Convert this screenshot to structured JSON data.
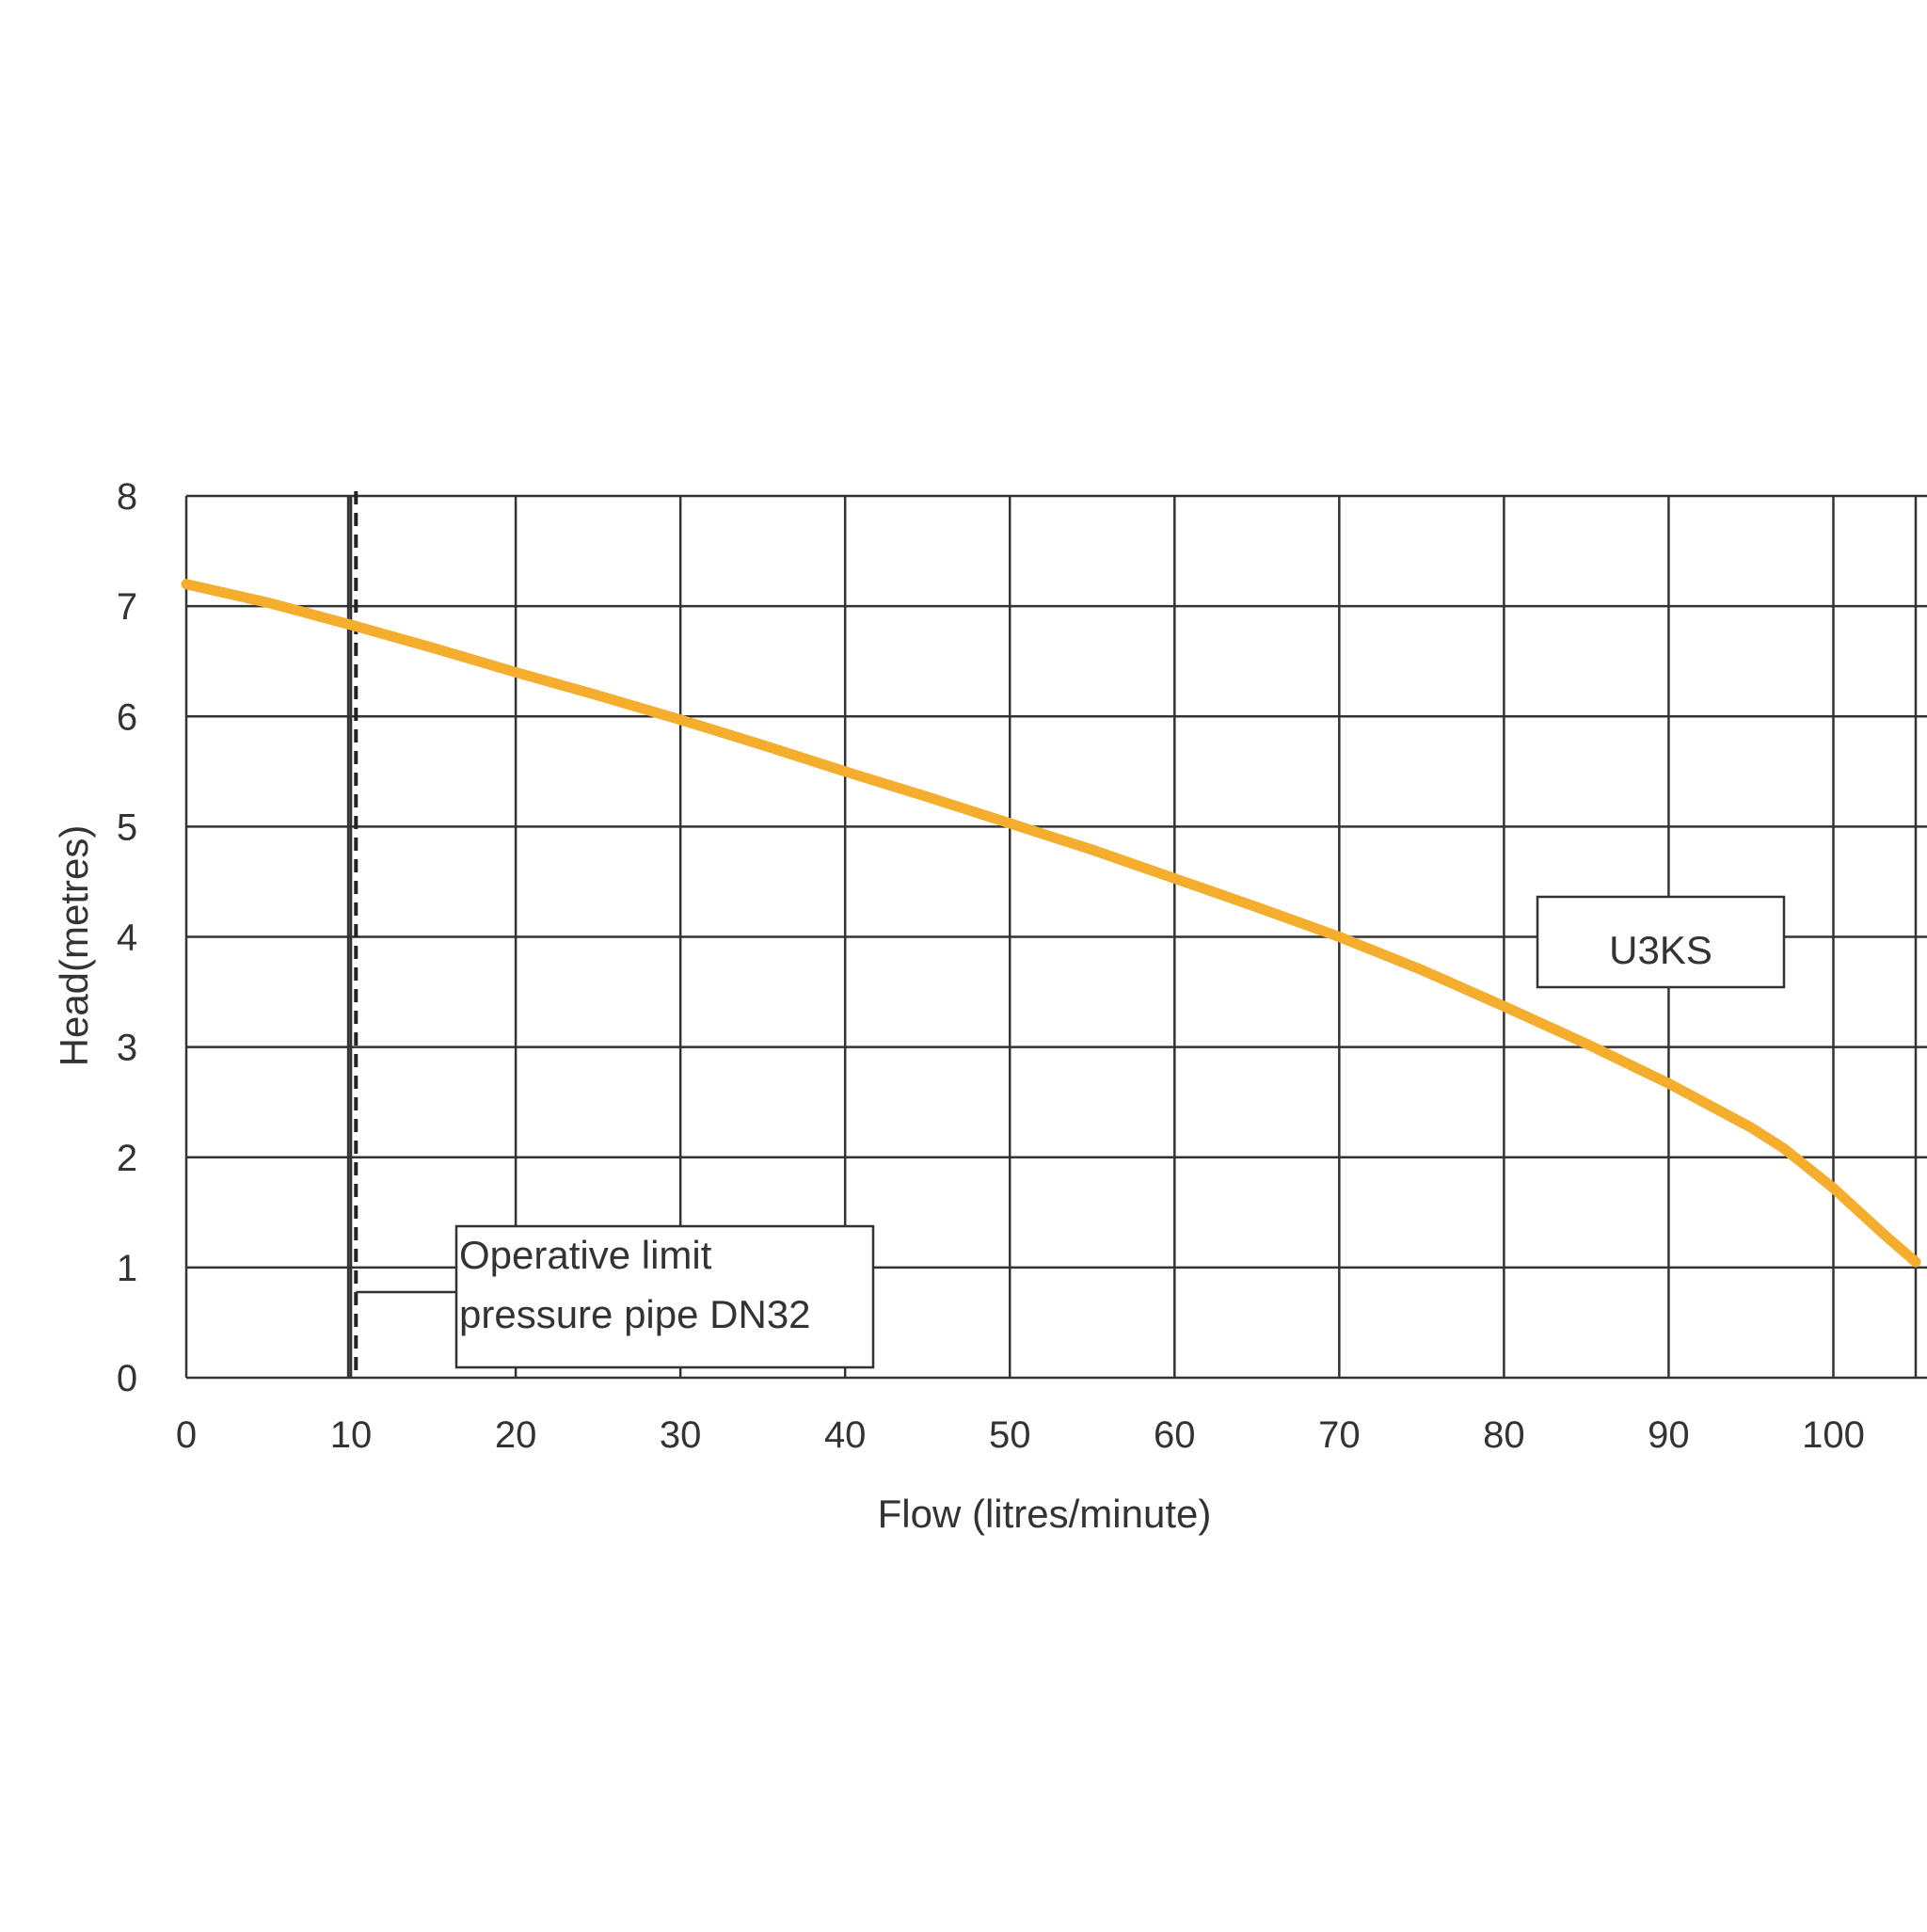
{
  "chart_data": {
    "type": "line",
    "xlabel": "Flow (litres/minute)",
    "ylabel": "Head(metres)",
    "xlim": [
      0,
      105
    ],
    "ylim": [
      0,
      8
    ],
    "x_ticks": [
      0,
      10,
      20,
      30,
      40,
      50,
      60,
      70,
      80,
      90,
      100
    ],
    "y_ticks": [
      0,
      1,
      2,
      3,
      4,
      5,
      6,
      7,
      8
    ],
    "grid": true,
    "series": [
      {
        "name": "U3KS",
        "color": "#f5ad2e",
        "x": [
          0,
          5,
          10,
          15,
          20,
          25,
          30,
          35,
          40,
          45,
          50,
          55,
          60,
          65,
          70,
          75,
          80,
          85,
          90,
          95,
          97,
          100,
          103,
          105
        ],
        "y": [
          7.2,
          7.03,
          6.83,
          6.62,
          6.4,
          6.19,
          5.97,
          5.74,
          5.5,
          5.27,
          5.03,
          4.79,
          4.53,
          4.27,
          4.0,
          3.7,
          3.37,
          3.03,
          2.67,
          2.27,
          2.08,
          1.72,
          1.31,
          1.05
        ]
      }
    ],
    "reference_line": {
      "x": 10.3,
      "style": "dashed",
      "label": [
        "Operative limit",
        "pressure pipe DN32"
      ]
    }
  }
}
